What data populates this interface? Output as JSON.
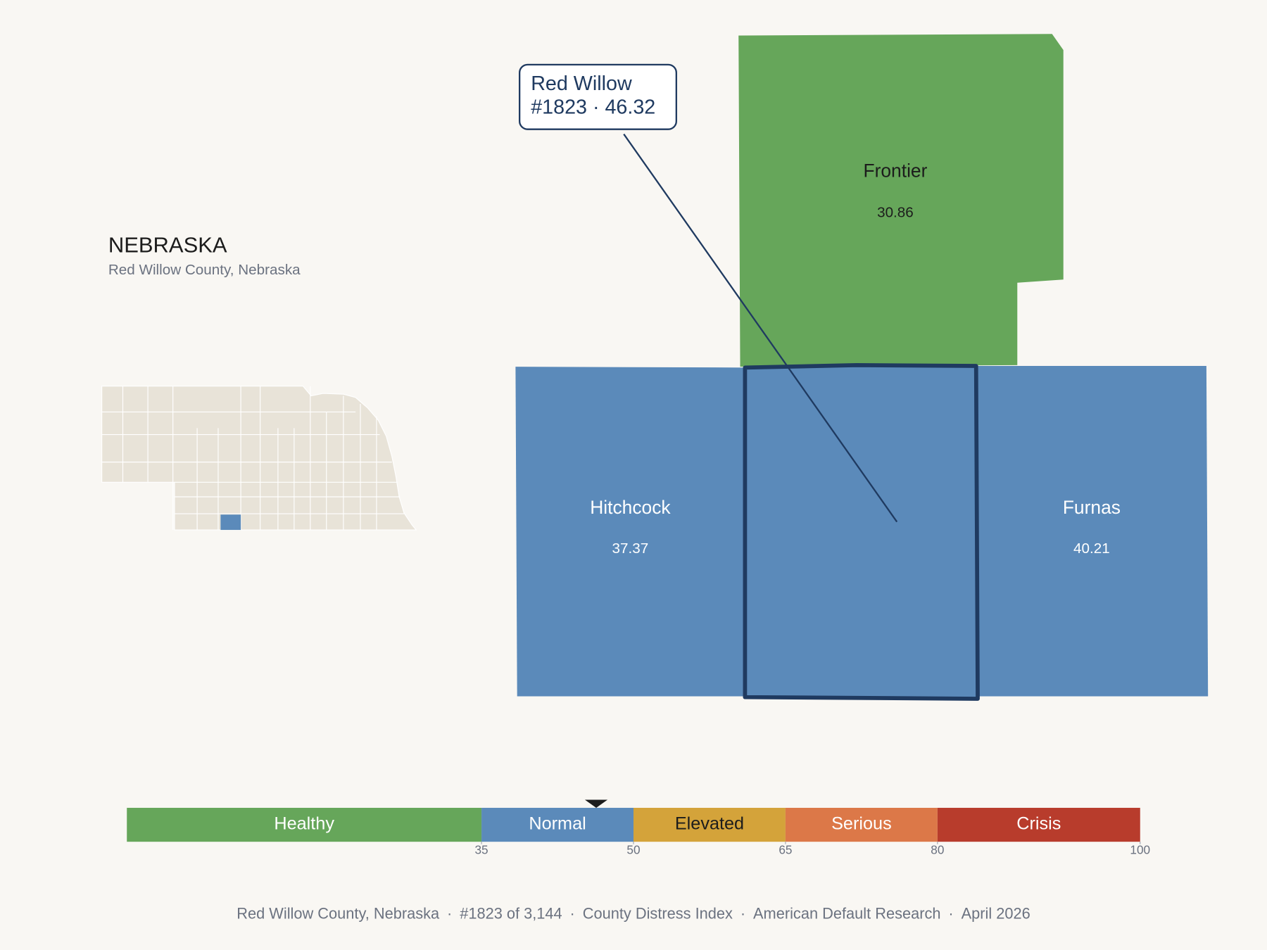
{
  "header": {
    "title": "NEBRASKA",
    "subtitle": "Red Willow County, Nebraska"
  },
  "chart_data": {
    "type": "choropleth",
    "counties": [
      {
        "name": "Frontier",
        "value": 30.86
      },
      {
        "name": "Hitchcock",
        "value": 37.37
      },
      {
        "name": "Furnas",
        "value": 40.21
      }
    ],
    "selected": {
      "name": "Red Willow",
      "label": "#1823 · 46.32",
      "value": 46.32
    },
    "legend": {
      "bands": [
        {
          "name": "Healthy",
          "color": "#66a65a"
        },
        {
          "name": "Normal",
          "color": "#5b8aba"
        },
        {
          "name": "Elevated",
          "color": "#d4a33a"
        },
        {
          "name": "Serious",
          "color": "#dc7848"
        },
        {
          "name": "Crisis",
          "color": "#b83c2c"
        }
      ],
      "xlim": [
        0,
        100
      ],
      "xticks": [
        35,
        50,
        65,
        80,
        100
      ]
    }
  },
  "footer": {
    "items": [
      "Red Willow County, Nebraska",
      "#1823 of 3,144",
      "County Distress Index",
      "American Default Research",
      "April 2026"
    ],
    "separator": "·"
  }
}
